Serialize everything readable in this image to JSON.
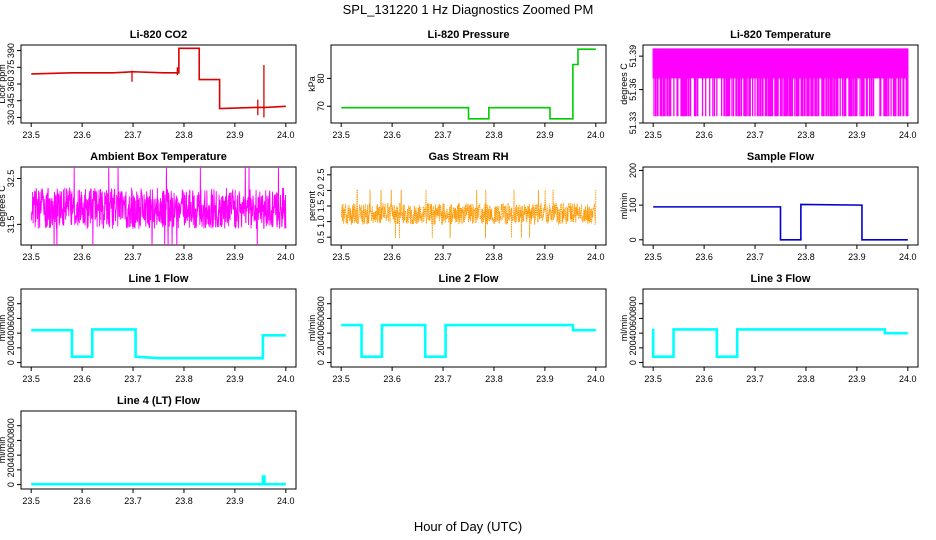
{
  "title": "SPL_131220  1 Hz Diagnostics Zoomed PM",
  "xlabel": "Hour of Day (UTC)",
  "chart_data": [
    {
      "type": "line",
      "title": "Li-820 CO2",
      "ylabel": "Licor ppm",
      "color": "#dd0000",
      "xlim": [
        23.5,
        24.0
      ],
      "ylim": [
        325,
        395
      ],
      "xticks": [
        "23.5",
        "23.6",
        "23.7",
        "23.8",
        "23.9",
        "24.0"
      ],
      "yticks": [
        {
          "v": 330,
          "label": "330"
        },
        {
          "v": 345,
          "label": "345"
        },
        {
          "v": 360,
          "label": "360"
        },
        {
          "v": 375,
          "label": "375"
        },
        {
          "v": 390,
          "label": "390"
        }
      ],
      "series": [
        {
          "name": "CO2",
          "x": [
            23.5,
            23.58,
            23.66,
            23.7,
            23.76,
            23.79,
            23.79,
            23.83,
            23.83,
            23.87,
            23.87,
            23.94,
            23.96,
            24.0
          ],
          "y": [
            369,
            370,
            370,
            371,
            370,
            370,
            392,
            392,
            364,
            364,
            338,
            339,
            339,
            340
          ]
        }
      ]
    },
    {
      "type": "line",
      "title": "Li-820 Pressure",
      "ylabel": "kPa",
      "color": "#00cc00",
      "xlim": [
        23.5,
        24.0
      ],
      "ylim": [
        64,
        92
      ],
      "xticks": [
        "23.5",
        "23.6",
        "23.7",
        "23.8",
        "23.9",
        "24.0"
      ],
      "yticks": [
        {
          "v": 70,
          "label": "70"
        },
        {
          "v": 80,
          "label": "80"
        }
      ],
      "series": [
        {
          "name": "Pressure",
          "x": [
            23.5,
            23.75,
            23.75,
            23.79,
            23.79,
            23.91,
            23.91,
            23.955,
            23.955,
            23.965,
            23.965,
            24.0
          ],
          "y": [
            69.5,
            69.5,
            65.5,
            65.5,
            69.5,
            69.5,
            65.5,
            65.5,
            85,
            85,
            90.5,
            90.5
          ]
        }
      ]
    },
    {
      "type": "line",
      "title": "Li-820 Temperature",
      "ylabel": "degrees C",
      "color": "#ff00ff",
      "xlim": [
        23.5,
        24.0
      ],
      "ylim": [
        51.33,
        51.4
      ],
      "xticks": [
        "23.5",
        "23.6",
        "23.7",
        "23.8",
        "23.9",
        "24.0"
      ],
      "yticks": [
        {
          "v": 51.33,
          "label": "51.33"
        },
        {
          "v": 51.36,
          "label": "51.36"
        },
        {
          "v": 51.39,
          "label": "51.39"
        }
      ],
      "series": [
        {
          "name": "Temperature",
          "x": [
            23.5,
            24.0
          ],
          "y": [
            51.365,
            51.365
          ]
        }
      ]
    },
    {
      "type": "line",
      "title": "Ambient Box Temperature",
      "ylabel": "degrees C",
      "color": "#ff00ff",
      "xlim": [
        23.5,
        24.0
      ],
      "ylim": [
        31.05,
        32.75
      ],
      "xticks": [
        "23.5",
        "23.6",
        "23.7",
        "23.8",
        "23.9",
        "24.0"
      ],
      "yticks": [
        {
          "v": 31.5,
          "label": "31.5"
        },
        {
          "v": 32.5,
          "label": "32.5"
        }
      ],
      "series": [
        {
          "name": "Box Temperature",
          "x": [
            23.5,
            24.0
          ],
          "y": [
            31.85,
            31.85
          ]
        }
      ]
    },
    {
      "type": "line",
      "title": "Gas Stream RH",
      "ylabel": "percent",
      "color": "#ff9900",
      "xlim": [
        23.5,
        24.0
      ],
      "ylim": [
        0.25,
        2.75
      ],
      "xticks": [
        "23.5",
        "23.6",
        "23.7",
        "23.8",
        "23.9",
        "24.0"
      ],
      "yticks": [
        {
          "v": 0.5,
          "label": "0.5"
        },
        {
          "v": 1.0,
          "label": "1.0"
        },
        {
          "v": 1.5,
          "label": "1.5"
        },
        {
          "v": 2.0,
          "label": "2.0"
        },
        {
          "v": 2.5,
          "label": "2.5"
        }
      ],
      "series": [
        {
          "name": "RH",
          "x": [
            23.5,
            24.0
          ],
          "y": [
            1.25,
            1.25
          ]
        }
      ]
    },
    {
      "type": "line",
      "title": "Sample Flow",
      "ylabel": "ml/min",
      "color": "#0000cc",
      "xlim": [
        23.5,
        24.0
      ],
      "ylim": [
        -15,
        210
      ],
      "xticks": [
        "23.5",
        "23.6",
        "23.7",
        "23.8",
        "23.9",
        "24.0"
      ],
      "yticks": [
        {
          "v": 0,
          "label": "0"
        },
        {
          "v": 100,
          "label": "100"
        },
        {
          "v": 200,
          "label": "200"
        }
      ],
      "series": [
        {
          "name": "Sample Flow",
          "x": [
            23.5,
            23.75,
            23.75,
            23.79,
            23.79,
            23.91,
            23.91,
            24.0
          ],
          "y": [
            95,
            95,
            0,
            0,
            102,
            100,
            0,
            0
          ]
        }
      ]
    },
    {
      "type": "line",
      "title": "Line 1 Flow",
      "ylabel": "ml/min",
      "color": "#00ffff",
      "xlim": [
        23.5,
        24.0
      ],
      "ylim": [
        -60,
        1000
      ],
      "xticks": [
        "23.5",
        "23.6",
        "23.7",
        "23.8",
        "23.9",
        "24.0"
      ],
      "yticks": [
        {
          "v": 0,
          "label": "0"
        },
        {
          "v": 200,
          "label": "200"
        },
        {
          "v": 400,
          "label": "400"
        },
        {
          "v": 600,
          "label": "600"
        },
        {
          "v": 800,
          "label": "800"
        }
      ],
      "series": [
        {
          "name": "Line 1 Flow",
          "x": [
            23.5,
            23.58,
            23.58,
            23.62,
            23.62,
            23.705,
            23.705,
            23.75,
            23.955,
            23.955,
            24.0
          ],
          "y": [
            440,
            440,
            80,
            80,
            450,
            450,
            80,
            60,
            60,
            370,
            370
          ]
        }
      ]
    },
    {
      "type": "line",
      "title": "Line 2 Flow",
      "ylabel": "ml/min",
      "color": "#00ffff",
      "xlim": [
        23.5,
        24.0
      ],
      "ylim": [
        -60,
        1000
      ],
      "xticks": [
        "23.5",
        "23.6",
        "23.7",
        "23.8",
        "23.9",
        "24.0"
      ],
      "yticks": [
        {
          "v": 0,
          "label": "0"
        },
        {
          "v": 200,
          "label": "200"
        },
        {
          "v": 400,
          "label": "400"
        },
        {
          "v": 600,
          "label": "600"
        },
        {
          "v": 800,
          "label": "800"
        }
      ],
      "series": [
        {
          "name": "Line 2 Flow",
          "x": [
            23.5,
            23.54,
            23.54,
            23.58,
            23.58,
            23.665,
            23.665,
            23.705,
            23.705,
            23.955,
            23.955,
            24.0
          ],
          "y": [
            510,
            510,
            80,
            80,
            510,
            510,
            80,
            80,
            510,
            510,
            440,
            440
          ]
        }
      ]
    },
    {
      "type": "line",
      "title": "Line 3 Flow",
      "ylabel": "ml/min",
      "color": "#00ffff",
      "xlim": [
        23.5,
        24.0
      ],
      "ylim": [
        -60,
        1000
      ],
      "xticks": [
        "23.5",
        "23.6",
        "23.7",
        "23.8",
        "23.9",
        "24.0"
      ],
      "yticks": [
        {
          "v": 0,
          "label": "0"
        },
        {
          "v": 200,
          "label": "200"
        },
        {
          "v": 400,
          "label": "400"
        },
        {
          "v": 600,
          "label": "600"
        },
        {
          "v": 800,
          "label": "800"
        }
      ],
      "series": [
        {
          "name": "Line 3 Flow",
          "x": [
            23.5,
            23.5,
            23.54,
            23.54,
            23.625,
            23.625,
            23.665,
            23.665,
            23.955,
            23.955,
            24.0
          ],
          "y": [
            460,
            80,
            80,
            450,
            450,
            80,
            80,
            450,
            450,
            400,
            400
          ]
        }
      ]
    },
    {
      "type": "line",
      "title": "Line 4 (LT) Flow",
      "ylabel": "ml/min",
      "color": "#00ffff",
      "xlim": [
        23.5,
        24.0
      ],
      "ylim": [
        -60,
        1000
      ],
      "xticks": [
        "23.5",
        "23.6",
        "23.7",
        "23.8",
        "23.9",
        "24.0"
      ],
      "yticks": [
        {
          "v": 0,
          "label": "0"
        },
        {
          "v": 200,
          "label": "200"
        },
        {
          "v": 400,
          "label": "400"
        },
        {
          "v": 600,
          "label": "600"
        },
        {
          "v": 800,
          "label": "800"
        }
      ],
      "series": [
        {
          "name": "Line 4 Flow",
          "x": [
            23.5,
            23.955,
            23.955,
            23.958,
            23.958,
            24.0
          ],
          "y": [
            5,
            5,
            110,
            110,
            5,
            5
          ]
        }
      ]
    }
  ]
}
